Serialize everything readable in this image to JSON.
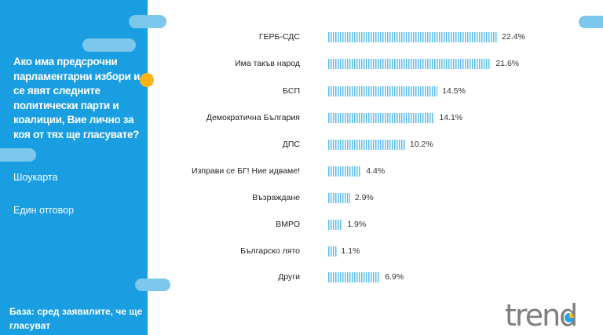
{
  "question": "Ако има предсрочни парламентарни избори и се явят следните политически парти и коалиции, Вие лично за коя от тях ще гласувате?",
  "method": "Шоукарта",
  "answer_type": "Един отговор",
  "base": "База: сред заявилите, че ще гласуват",
  "logo": "trend",
  "colors": {
    "panel": "#1a9ee2",
    "bar": "#5cbde9",
    "accent": "#fbb413"
  },
  "chart_data": {
    "type": "bar",
    "orientation": "horizontal",
    "categories": [
      "ГЕРБ-СДС",
      "Има такъв народ",
      "БСП",
      "Демократична България",
      "ДПС",
      "Изправи се БГ! Ние идваме!",
      "Възраждане",
      "ВМРО",
      "Българско лято",
      "Други"
    ],
    "values": [
      22.4,
      21.6,
      14.5,
      14.1,
      10.2,
      4.4,
      2.9,
      1.9,
      1.1,
      6.9
    ],
    "labels": [
      "22.4%",
      "21.6%",
      "14.5%",
      "14.1%",
      "10.2%",
      "4.4%",
      "2.9%",
      "1.9%",
      "1.1%",
      "6.9%"
    ],
    "unit": "%"
  }
}
